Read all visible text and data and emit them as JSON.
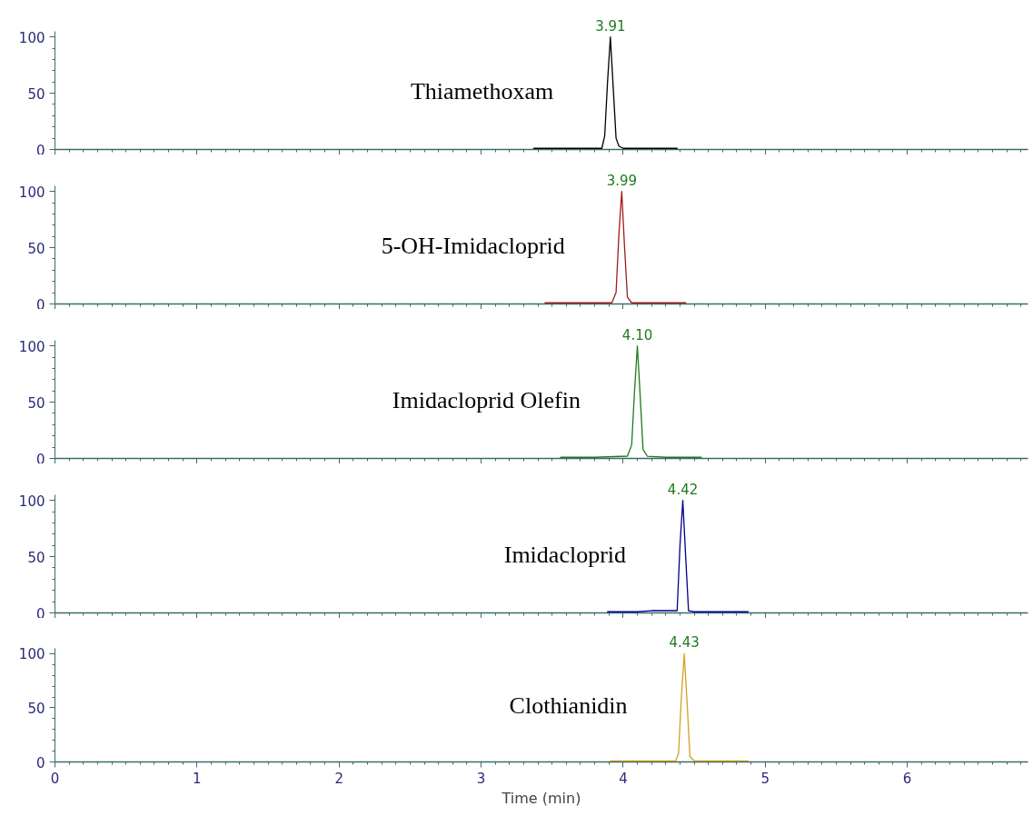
{
  "chart_data": [
    {
      "type": "line",
      "xlim": [
        0,
        6.85
      ],
      "ylim": [
        0,
        105
      ],
      "yticks": [
        0,
        50,
        100
      ],
      "xticks": [
        0,
        1,
        2,
        3,
        4,
        5,
        6
      ],
      "tick_labels": "y",
      "grid": false,
      "series": [
        {
          "name": "Thiamethoxam",
          "color": "#000000",
          "x": [
            3.37,
            3.6,
            3.8,
            3.85,
            3.87,
            3.89,
            3.91,
            3.93,
            3.95,
            3.97,
            4.0,
            4.2,
            4.38
          ],
          "values": [
            1,
            1,
            1,
            1,
            12,
            60,
            100,
            55,
            10,
            3,
            1,
            1,
            1
          ]
        }
      ],
      "annotations": [
        {
          "text": "3.91",
          "x": 3.91,
          "y": 100
        }
      ]
    },
    {
      "type": "line",
      "xlim": [
        0,
        6.85
      ],
      "ylim": [
        0,
        105
      ],
      "yticks": [
        0,
        50,
        100
      ],
      "xticks": [
        0,
        1,
        2,
        3,
        4,
        5,
        6
      ],
      "tick_labels": "y",
      "grid": false,
      "series": [
        {
          "name": "5-OH-Imidacloprid",
          "color": "#a01c1c",
          "x": [
            3.45,
            3.7,
            3.92,
            3.95,
            3.97,
            3.99,
            4.01,
            4.03,
            4.06,
            4.2,
            4.44
          ],
          "values": [
            1,
            1,
            1,
            10,
            62,
            100,
            50,
            6,
            1,
            1,
            1
          ]
        }
      ],
      "annotations": [
        {
          "text": "3.99",
          "x": 3.99,
          "y": 100
        }
      ]
    },
    {
      "type": "line",
      "xlim": [
        0,
        6.85
      ],
      "ylim": [
        0,
        105
      ],
      "yticks": [
        0,
        50,
        100
      ],
      "xticks": [
        0,
        1,
        2,
        3,
        4,
        5,
        6
      ],
      "tick_labels": "y",
      "grid": false,
      "series": [
        {
          "name": "Imidacloprid Olefin",
          "color": "#1e7a1e",
          "x": [
            3.56,
            3.8,
            4.03,
            4.06,
            4.08,
            4.1,
            4.12,
            4.14,
            4.17,
            4.3,
            4.55
          ],
          "values": [
            1,
            1,
            2,
            12,
            60,
            100,
            55,
            8,
            2,
            1,
            1
          ]
        }
      ],
      "annotations": [
        {
          "text": "4.10",
          "x": 4.1,
          "y": 100
        }
      ]
    },
    {
      "type": "line",
      "xlim": [
        0,
        6.85
      ],
      "ylim": [
        0,
        105
      ],
      "yticks": [
        0,
        50,
        100
      ],
      "xticks": [
        0,
        1,
        2,
        3,
        4,
        5,
        6
      ],
      "tick_labels": "y",
      "grid": false,
      "series": [
        {
          "name": "Imidacloprid",
          "color": "#00008b",
          "x": [
            3.89,
            4.1,
            4.2,
            4.38,
            4.4,
            4.42,
            4.44,
            4.46,
            4.5,
            4.7,
            4.88
          ],
          "values": [
            1,
            1,
            2,
            2,
            60,
            100,
            50,
            2,
            1,
            1,
            1
          ]
        }
      ],
      "annotations": [
        {
          "text": "4.42",
          "x": 4.42,
          "y": 100
        }
      ]
    },
    {
      "type": "line",
      "xlim": [
        0,
        6.85
      ],
      "ylim": [
        0,
        105
      ],
      "yticks": [
        0,
        50,
        100
      ],
      "xticks": [
        0,
        1,
        2,
        3,
        4,
        5,
        6
      ],
      "grid": false,
      "xlabel": "Time (min)",
      "series": [
        {
          "name": "Clothianidin",
          "color": "#d4a020",
          "x": [
            3.91,
            4.2,
            4.37,
            4.39,
            4.41,
            4.43,
            4.45,
            4.47,
            4.5,
            4.7,
            4.88
          ],
          "values": [
            1,
            1,
            1,
            8,
            60,
            100,
            55,
            5,
            1,
            1,
            1
          ]
        }
      ],
      "annotations": [
        {
          "text": "4.43",
          "x": 4.43,
          "y": 100
        }
      ]
    }
  ]
}
